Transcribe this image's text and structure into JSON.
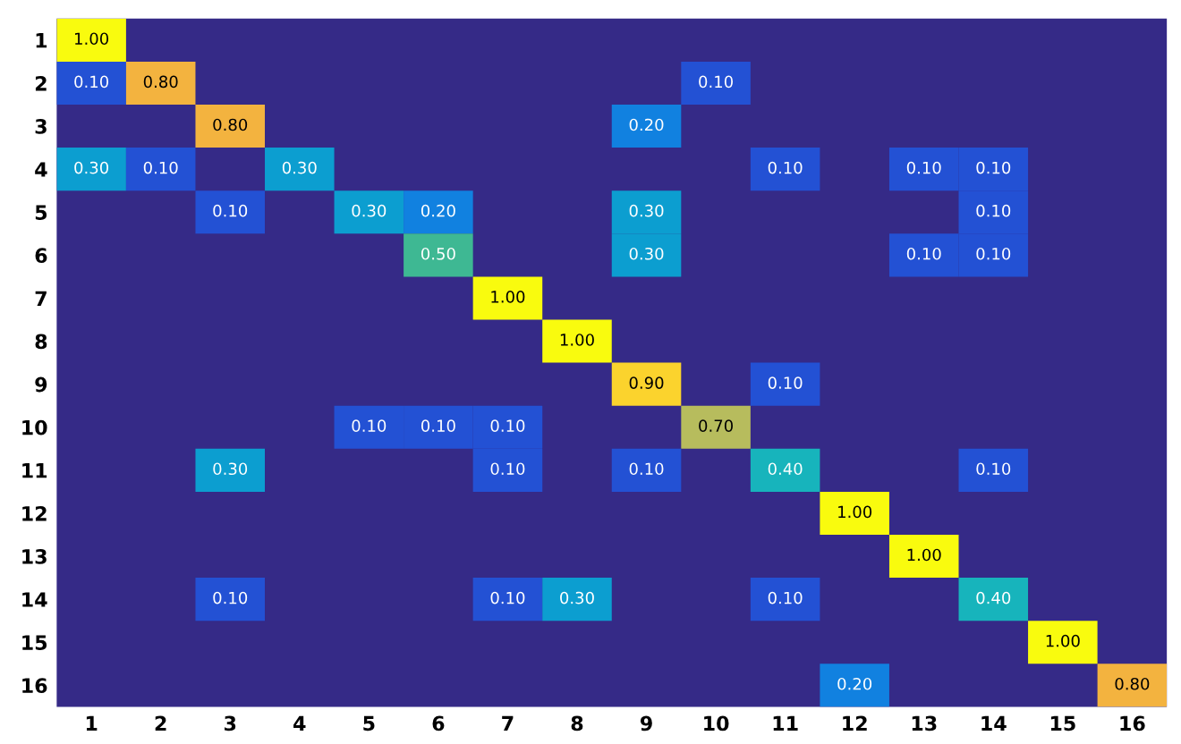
{
  "chart_data": {
    "type": "heatmap",
    "categories": [
      "1",
      "2",
      "3",
      "4",
      "5",
      "6",
      "7",
      "8",
      "9",
      "10",
      "11",
      "12",
      "13",
      "14",
      "15",
      "16"
    ],
    "y_categories": [
      "1",
      "2",
      "3",
      "4",
      "5",
      "6",
      "7",
      "8",
      "9",
      "10",
      "11",
      "12",
      "13",
      "14",
      "15",
      "16"
    ],
    "cells": [
      [
        1.0,
        null,
        null,
        null,
        null,
        null,
        null,
        null,
        null,
        null,
        null,
        null,
        null,
        null,
        null,
        null
      ],
      [
        0.1,
        0.8,
        null,
        null,
        null,
        null,
        null,
        null,
        null,
        0.1,
        null,
        null,
        null,
        null,
        null,
        null
      ],
      [
        null,
        null,
        0.8,
        null,
        null,
        null,
        null,
        null,
        0.2,
        null,
        null,
        null,
        null,
        null,
        null,
        null
      ],
      [
        0.3,
        0.1,
        null,
        0.3,
        null,
        null,
        null,
        null,
        null,
        null,
        0.1,
        null,
        0.1,
        0.1,
        null,
        null
      ],
      [
        null,
        null,
        0.1,
        null,
        0.3,
        0.2,
        null,
        null,
        0.3,
        null,
        null,
        null,
        null,
        0.1,
        null,
        null
      ],
      [
        null,
        null,
        null,
        null,
        null,
        0.5,
        null,
        null,
        0.3,
        null,
        null,
        null,
        0.1,
        0.1,
        null,
        null
      ],
      [
        null,
        null,
        null,
        null,
        null,
        null,
        1.0,
        null,
        null,
        null,
        null,
        null,
        null,
        null,
        null,
        null
      ],
      [
        null,
        null,
        null,
        null,
        null,
        null,
        null,
        1.0,
        null,
        null,
        null,
        null,
        null,
        null,
        null,
        null
      ],
      [
        null,
        null,
        null,
        null,
        null,
        null,
        null,
        null,
        0.9,
        null,
        0.1,
        null,
        null,
        null,
        null,
        null
      ],
      [
        null,
        null,
        null,
        null,
        0.1,
        0.1,
        0.1,
        null,
        null,
        0.7,
        null,
        null,
        null,
        null,
        null,
        null
      ],
      [
        null,
        null,
        0.3,
        null,
        null,
        null,
        0.1,
        null,
        0.1,
        null,
        0.4,
        null,
        null,
        0.1,
        null,
        null
      ],
      [
        null,
        null,
        null,
        null,
        null,
        null,
        null,
        null,
        null,
        null,
        null,
        1.0,
        null,
        null,
        null,
        null
      ],
      [
        null,
        null,
        null,
        null,
        null,
        null,
        null,
        null,
        null,
        null,
        null,
        null,
        1.0,
        null,
        null,
        null
      ],
      [
        null,
        null,
        0.1,
        null,
        null,
        null,
        0.1,
        0.3,
        null,
        null,
        0.1,
        null,
        null,
        0.4,
        null,
        null
      ],
      [
        null,
        null,
        null,
        null,
        null,
        null,
        null,
        null,
        null,
        null,
        null,
        null,
        null,
        null,
        1.0,
        null
      ],
      [
        null,
        null,
        null,
        null,
        null,
        null,
        null,
        null,
        null,
        null,
        null,
        0.2,
        null,
        null,
        null,
        0.8
      ]
    ],
    "cell_labels": [
      [
        "1.00",
        null,
        null,
        null,
        null,
        null,
        null,
        null,
        null,
        null,
        null,
        null,
        null,
        null,
        null,
        null
      ],
      [
        "0.10",
        "0.80",
        null,
        null,
        null,
        null,
        null,
        null,
        null,
        "0.10",
        null,
        null,
        null,
        null,
        null,
        null
      ],
      [
        null,
        null,
        "0.80",
        null,
        null,
        null,
        null,
        null,
        "0.20",
        null,
        null,
        null,
        null,
        null,
        null,
        null
      ],
      [
        "0.30",
        "0.10",
        null,
        "0.30",
        null,
        null,
        null,
        null,
        null,
        null,
        "0.10",
        null,
        "0.10",
        "0.10",
        null,
        null
      ],
      [
        null,
        null,
        "0.10",
        null,
        "0.30",
        "0.20",
        null,
        null,
        "0.30",
        null,
        null,
        null,
        null,
        "0.10",
        null,
        null
      ],
      [
        null,
        null,
        null,
        null,
        null,
        "0.50",
        null,
        null,
        "0.30",
        null,
        null,
        null,
        "0.10",
        "0.10",
        null,
        null
      ],
      [
        null,
        null,
        null,
        null,
        null,
        null,
        "1.00",
        null,
        null,
        null,
        null,
        null,
        null,
        null,
        null,
        null
      ],
      [
        null,
        null,
        null,
        null,
        null,
        null,
        null,
        "1.00",
        null,
        null,
        null,
        null,
        null,
        null,
        null,
        null
      ],
      [
        null,
        null,
        null,
        null,
        null,
        null,
        null,
        null,
        "0.90",
        null,
        "0.10",
        null,
        null,
        null,
        null,
        null
      ],
      [
        null,
        null,
        null,
        null,
        "0.10",
        "0.10",
        "0.10",
        null,
        null,
        "0.70",
        null,
        null,
        null,
        null,
        null,
        null
      ],
      [
        null,
        null,
        "0.30",
        null,
        null,
        null,
        "0.10",
        null,
        "0.10",
        null,
        "0.40",
        null,
        null,
        "0.10",
        null,
        null
      ],
      [
        null,
        null,
        null,
        null,
        null,
        null,
        null,
        null,
        null,
        null,
        null,
        "1.00",
        null,
        null,
        null,
        null
      ],
      [
        null,
        null,
        null,
        null,
        null,
        null,
        null,
        null,
        null,
        null,
        null,
        null,
        "1.00",
        null,
        null,
        null
      ],
      [
        null,
        null,
        "0.10",
        null,
        null,
        null,
        "0.10",
        "0.30",
        null,
        null,
        "0.10",
        null,
        null,
        "0.40",
        null,
        null
      ],
      [
        null,
        null,
        null,
        null,
        null,
        null,
        null,
        null,
        null,
        null,
        null,
        null,
        null,
        null,
        "1.00",
        null
      ],
      [
        null,
        null,
        null,
        null,
        null,
        null,
        null,
        null,
        null,
        null,
        null,
        "0.20",
        null,
        null,
        null,
        "0.80"
      ]
    ]
  }
}
